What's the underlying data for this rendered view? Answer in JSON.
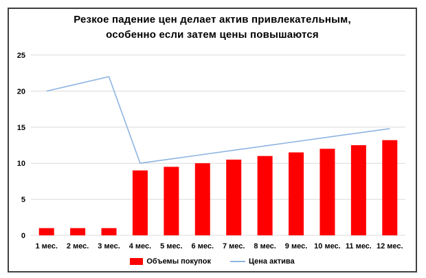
{
  "title": {
    "line1": "Резкое падение цен делает актив привлекательным,",
    "line2": "особенно если затем цены повышаются"
  },
  "chart_data": {
    "type": "bar",
    "title": "Резкое падение цен делает актив привлекательным, особенно если затем цены повышаются",
    "categories": [
      "1 мес.",
      "2 мес.",
      "3 мес.",
      "4 мес.",
      "5 мес.",
      "6 мес.",
      "7 мес.",
      "8 мес.",
      "9 мес.",
      "10 мес.",
      "11 мес.",
      "12 мес."
    ],
    "series": [
      {
        "name": "Объемы покупок",
        "type": "bar",
        "color": "#ff0000",
        "values": [
          1,
          1,
          1,
          9,
          9.5,
          10,
          10.5,
          11,
          11.5,
          12,
          12.5,
          13.2
        ]
      },
      {
        "name": "Цена актива",
        "type": "line",
        "color": "#8eb4e2",
        "values": [
          20,
          21,
          22,
          10,
          10.6,
          11.2,
          11.8,
          12.4,
          13,
          13.6,
          14.2,
          14.8
        ]
      }
    ],
    "y_ticks": [
      "0",
      "5",
      "10",
      "15",
      "20",
      "25"
    ],
    "ylim": [
      0,
      25
    ],
    "xlabel": "",
    "ylabel": "",
    "grid": true,
    "legend_position": "bottom"
  },
  "colors": {
    "bar": "#ff0000",
    "line": "#8eb4e2",
    "gridline": "#d9d9d9",
    "frame_border": "#3f3f3f",
    "text": "#000000"
  }
}
